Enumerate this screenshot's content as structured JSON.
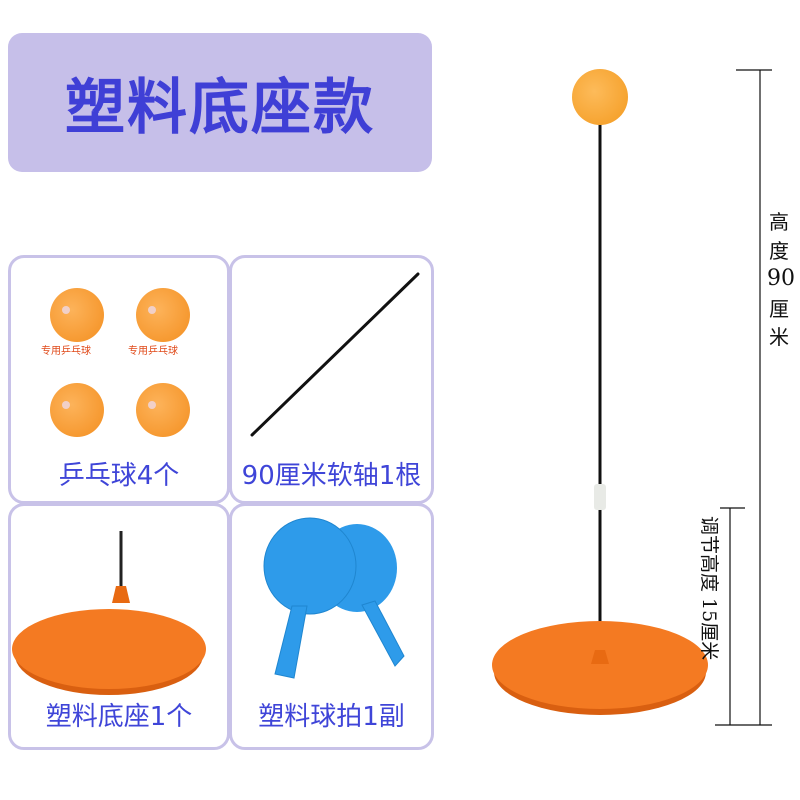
{
  "title": "塑料底座款",
  "panels": [
    {
      "label": "乒乓球4个",
      "ball_caption": "专用乒乓球"
    },
    {
      "label": "90厘米软轴1根"
    },
    {
      "label": "塑料底座1个"
    },
    {
      "label": "塑料球拍1副"
    }
  ],
  "dimensions": {
    "total_height": [
      "高",
      "度",
      "90",
      "厘",
      "米"
    ],
    "adjust_height": "调节高度 15厘米"
  },
  "colors": {
    "title_bg": "#c6bfe9",
    "title_text": "#3f3fd6",
    "ball": "#f9a73a",
    "base": "#f47a22",
    "paddle": "#2e9bea",
    "panel_border": "#c8c2e8"
  }
}
